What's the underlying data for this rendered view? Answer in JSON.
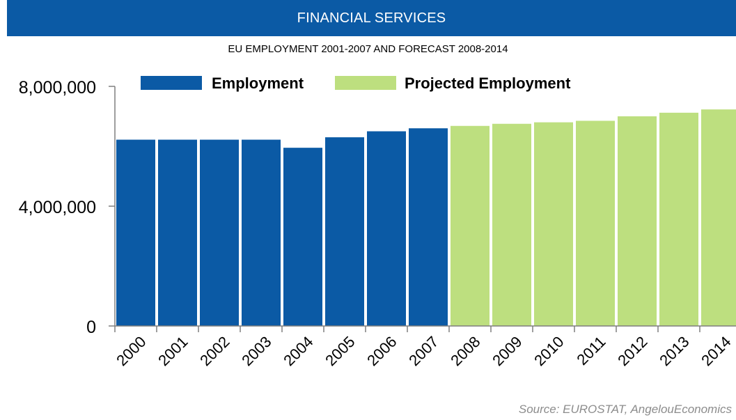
{
  "header": {
    "title": "FINANCIAL SERVICES"
  },
  "chart_data": {
    "type": "bar",
    "title": "FINANCIAL SERVICES",
    "subtitle": "EU EMPLOYMENT 2001-2007 AND FORECAST 2008-2014",
    "categories": [
      "2000",
      "2001",
      "2002",
      "2003",
      "2004",
      "2005",
      "2006",
      "2007",
      "2008",
      "2009",
      "2010",
      "2011",
      "2012",
      "2013",
      "2014"
    ],
    "values": [
      6220000,
      6220000,
      6220000,
      6220000,
      5950000,
      6300000,
      6500000,
      6600000,
      6680000,
      6750000,
      6800000,
      6850000,
      7000000,
      7120000,
      7230000
    ],
    "series_by_category": [
      "Employment",
      "Employment",
      "Employment",
      "Employment",
      "Employment",
      "Employment",
      "Employment",
      "Employment",
      "Projected Employment",
      "Projected Employment",
      "Projected Employment",
      "Projected Employment",
      "Projected Employment",
      "Projected Employment",
      "Projected Employment"
    ],
    "legend": [
      {
        "name": "Employment",
        "color": "#0b5aa5"
      },
      {
        "name": "Projected Employment",
        "color": "#bddf7f"
      }
    ],
    "legend_position": "top",
    "ylim": [
      0,
      8000000
    ],
    "y_ticks": [
      0,
      4000000,
      8000000
    ],
    "y_tick_labels": [
      "0",
      "4,000,000",
      "8,000,000"
    ],
    "xlabel": "",
    "ylabel": "",
    "grid": false
  },
  "source": "Source: EUROSTAT, AngelouEconomics"
}
